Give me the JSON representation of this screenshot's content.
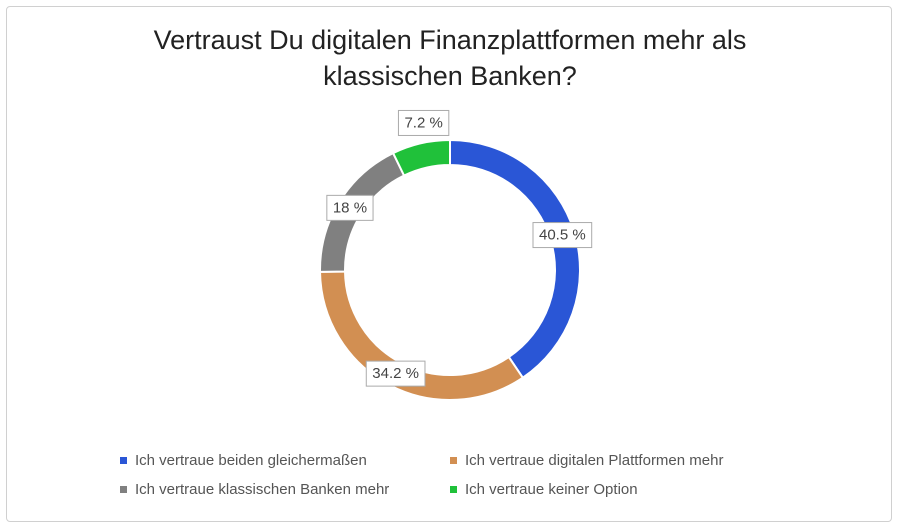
{
  "chart_data": {
    "type": "donut",
    "title": "Vertraust Du digitalen Finanzplattformen mehr als klassischen Banken?",
    "categories": [
      "Ich vertraue beiden gleichermaßen",
      "Ich vertraue digitalen Plattformen mehr",
      "Ich vertraue klassischen Banken mehr",
      "Ich vertraue keiner Option"
    ],
    "values": [
      40.5,
      34.2,
      18,
      7.2
    ],
    "value_labels": [
      "40.5 %",
      "34.2 %",
      "18 %",
      "7.2 %"
    ],
    "colors": [
      "#2a56d6",
      "#d28f52",
      "#808080",
      "#20c13a"
    ],
    "legend": "bottom"
  }
}
